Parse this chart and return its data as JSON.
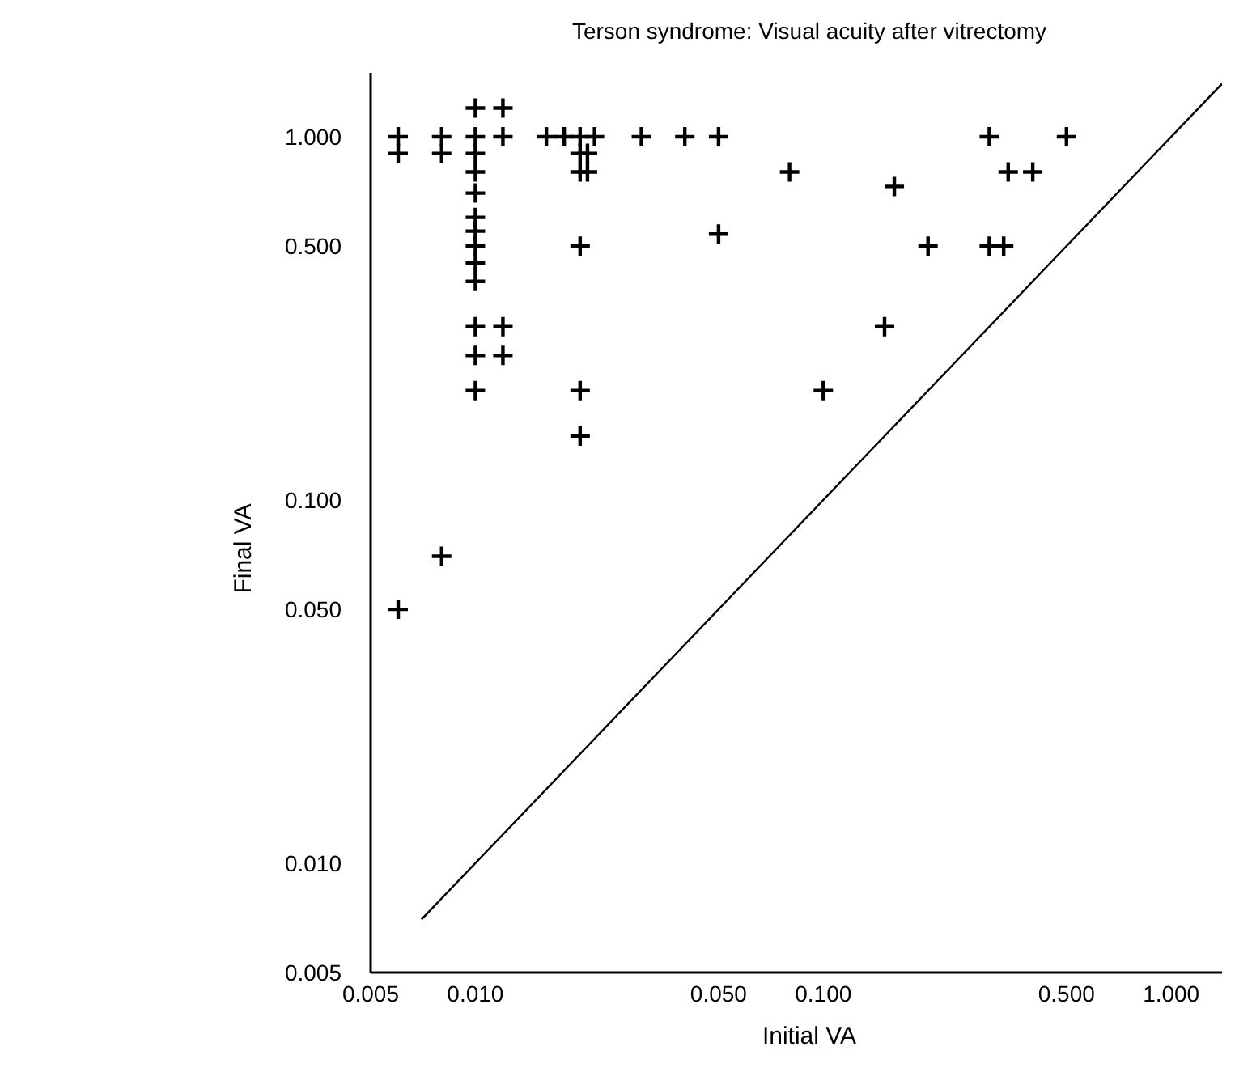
{
  "chart_data": {
    "type": "scatter",
    "title": "Terson syndrome: Visual acuity after vitrectomy",
    "xlabel": "Initial VA",
    "ylabel": "Final VA",
    "log": "xy",
    "xlim": [
      0.005,
      1.4
    ],
    "ylim": [
      0.005,
      1.5
    ],
    "xticks": [
      {
        "value": 0.005,
        "label": "0.005"
      },
      {
        "value": 0.01,
        "label": "0.010"
      },
      {
        "value": 0.05,
        "label": "0.050"
      },
      {
        "value": 0.1,
        "label": "0.100"
      },
      {
        "value": 0.5,
        "label": "0.500"
      },
      {
        "value": 1,
        "label": "1.000"
      }
    ],
    "yticks": [
      {
        "value": 0.005,
        "label": "0.005"
      },
      {
        "value": 0.01,
        "label": "0.010"
      },
      {
        "value": 0.05,
        "label": "0.050"
      },
      {
        "value": 0.1,
        "label": "0.100"
      },
      {
        "value": 0.5,
        "label": "0.500"
      },
      {
        "value": 1,
        "label": "1.000"
      }
    ],
    "grid": false,
    "marker": "cross",
    "series": [
      {
        "color": "#000000",
        "x": [
          0.006,
          0.006,
          0.006,
          0.008,
          0.008,
          0.008,
          0.01,
          0.01,
          0.01,
          0.01,
          0.01,
          0.01,
          0.01,
          0.01,
          0.01,
          0.01,
          0.01,
          0.01,
          0.01,
          0.012,
          0.012,
          0.012,
          0.012,
          0.016,
          0.018,
          0.02,
          0.022,
          0.02,
          0.021,
          0.02,
          0.021,
          0.02,
          0.02,
          0.02,
          0.03,
          0.04,
          0.05,
          0.08,
          0.05,
          0.16,
          0.2,
          0.15,
          0.1,
          0.3,
          0.3,
          0.33,
          0.34,
          0.4,
          0.5
        ],
        "values": [
          1.0,
          0.9,
          0.05,
          1.0,
          0.9,
          0.07,
          1.2,
          1.0,
          0.9,
          0.8,
          0.7,
          0.6,
          0.55,
          0.5,
          0.45,
          0.4,
          0.3,
          0.25,
          0.2,
          1.2,
          1.0,
          0.3,
          0.25,
          1.0,
          1.0,
          1.0,
          1.0,
          0.9,
          0.9,
          0.8,
          0.8,
          0.5,
          0.2,
          0.15,
          1.0,
          1.0,
          1.0,
          0.8,
          0.54,
          0.73,
          0.5,
          0.3,
          0.2,
          1.0,
          0.5,
          0.5,
          0.8,
          0.8,
          1.0
        ]
      },
      {
        "type": "line",
        "color": "#000000",
        "marker": "none",
        "line_style": "solid",
        "x": [
          0.007,
          1.4
        ],
        "values": [
          0.007,
          1.4
        ]
      }
    ]
  }
}
